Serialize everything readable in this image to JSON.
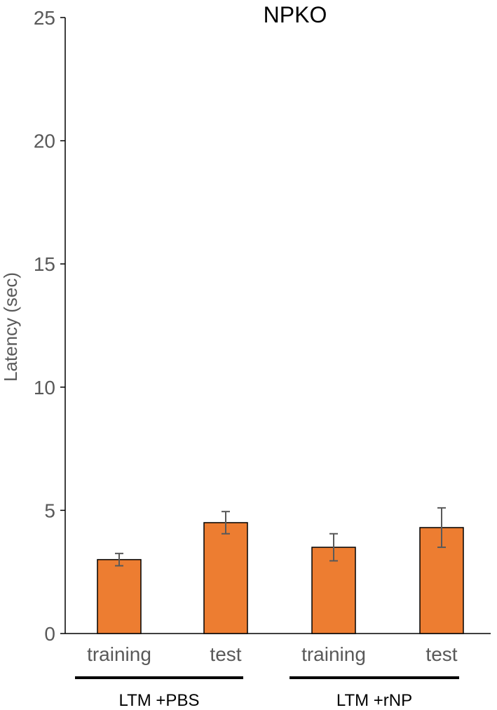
{
  "chart_data": {
    "type": "bar",
    "title": "NPKO",
    "ylabel": "Latency (sec)",
    "xlabel": "",
    "ylim": [
      0,
      25
    ],
    "yticks": [
      0,
      5,
      10,
      15,
      20,
      25
    ],
    "categories": [
      "training",
      "test",
      "training",
      "test"
    ],
    "groups": [
      {
        "label": "LTM +PBS",
        "categories": [
          0,
          1
        ]
      },
      {
        "label": "LTM +rNP",
        "categories": [
          2,
          3
        ]
      }
    ],
    "values": [
      3.0,
      4.5,
      3.5,
      4.3
    ],
    "errors": [
      0.25,
      0.45,
      0.55,
      0.8
    ],
    "bar_color": "#ED7D31",
    "error_color": "#595959",
    "grid": false,
    "legend": "none"
  }
}
